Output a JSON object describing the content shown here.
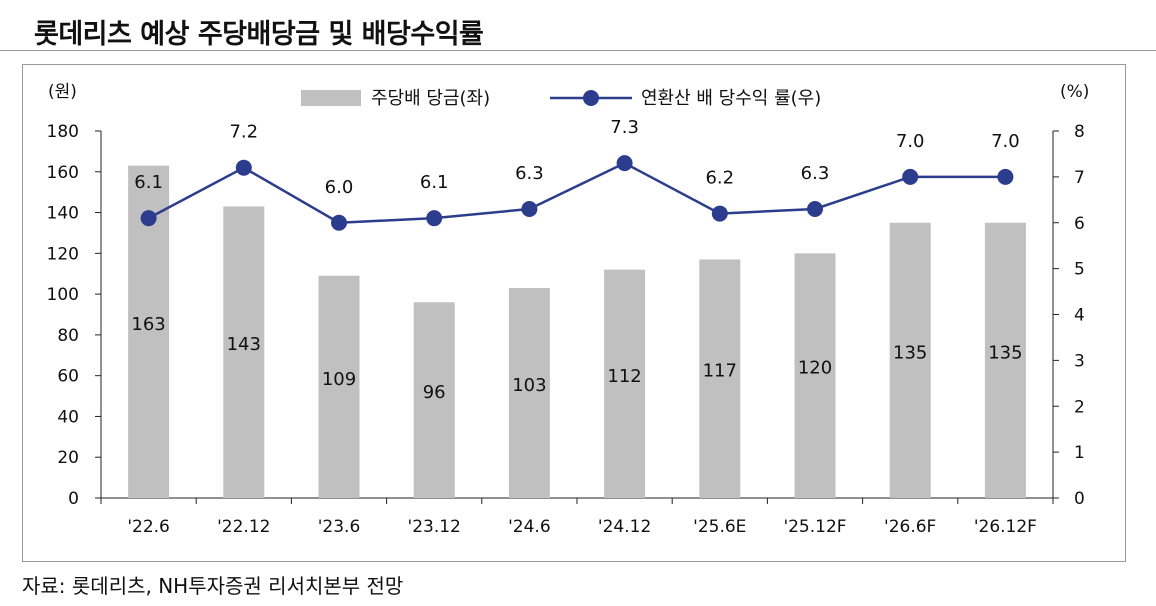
{
  "page": {
    "title": "롯데리츠 예상 주당배당금 및 배당수익률",
    "source": "자료: 롯데리츠, NH투자증권 리서치본부 전망"
  },
  "chart_data": {
    "type": "bar",
    "categories": [
      "'22.6",
      "'22.12",
      "'23.6",
      "'23.12",
      "'24.6",
      "'24.12",
      "'25.6E",
      "'25.12F",
      "'26.6F",
      "'26.12F"
    ],
    "series": [
      {
        "name": "주당배 당금(좌)",
        "type": "bar",
        "axis": "left",
        "values": [
          163,
          143,
          109,
          96,
          103,
          112,
          117,
          120,
          135,
          135
        ]
      },
      {
        "name": "연환산 배 당수익 률(우)",
        "type": "line",
        "axis": "right",
        "values": [
          6.1,
          7.2,
          6.0,
          6.1,
          6.3,
          7.3,
          6.2,
          6.3,
          7.0,
          7.0
        ],
        "labels": [
          "6.1",
          "7.2",
          "6.0",
          "6.1",
          "6.3",
          "7.3",
          "6.2",
          "6.3",
          "7.0",
          "7.0"
        ]
      }
    ],
    "ylabel_left": "(원)",
    "ylabel_right": "(%)",
    "ylim_left": [
      0,
      180
    ],
    "yticks_left": [
      "0",
      "20",
      "40",
      "60",
      "80",
      "100",
      "120",
      "140",
      "160",
      "180"
    ],
    "ylim_right": [
      0,
      8
    ],
    "yticks_right": [
      "0",
      "1",
      "2",
      "3",
      "4",
      "5",
      "6",
      "7",
      "8"
    ],
    "grid": false,
    "legend_position": "top-center",
    "colors": {
      "bar": "#c0c0c0",
      "line": "#2b3d8c",
      "axis": "#222222"
    }
  }
}
